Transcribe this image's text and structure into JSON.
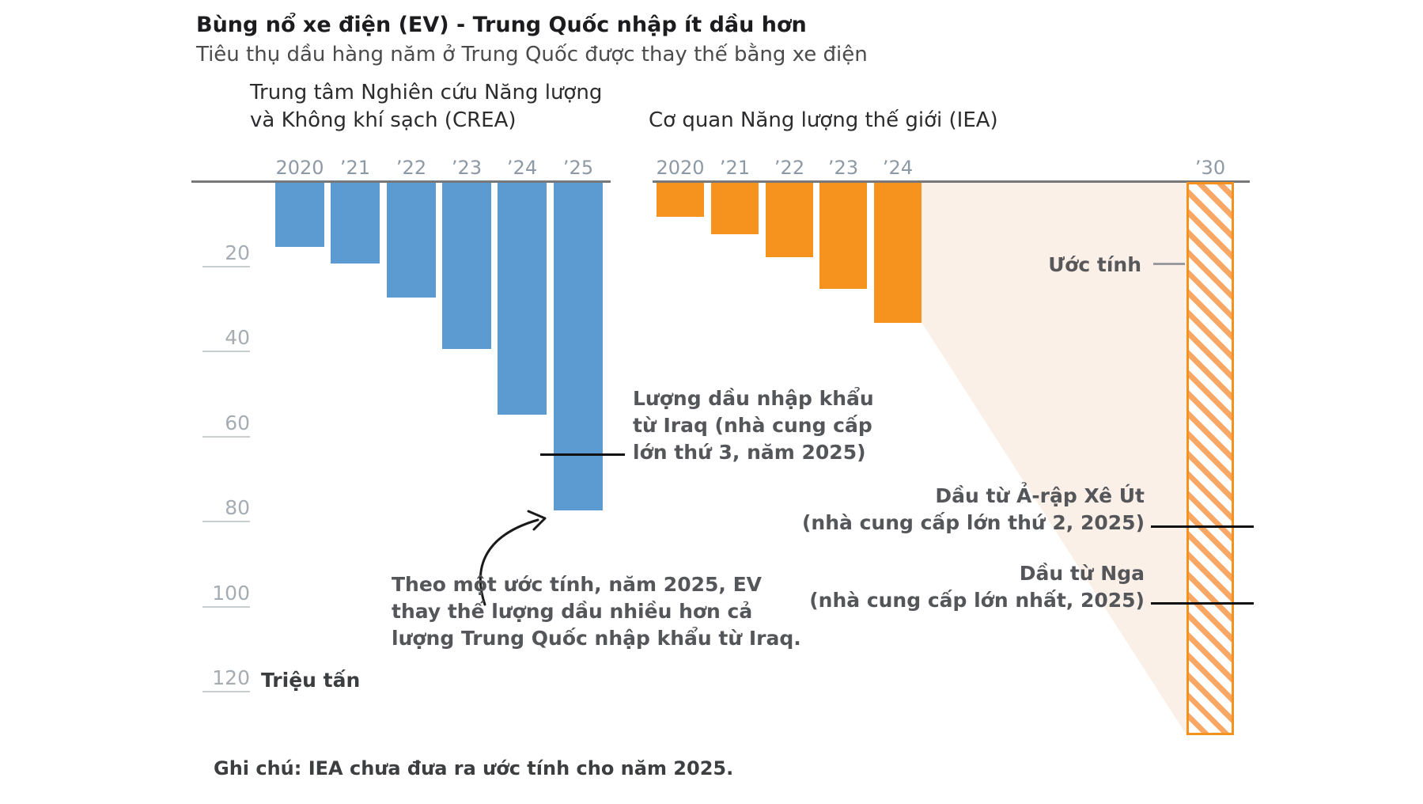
{
  "title": "Bùng nổ xe điện (EV) - Trung Quốc nhập ít dầu hơn",
  "subtitle": "Tiêu thụ dầu hàng năm ở Trung Quốc được thay thế bằng xe điện",
  "colors": {
    "crea_blue": "#5b9bd2",
    "iea_orange": "#f6921e",
    "hatch_stripe": "#f9a765",
    "estimate_fill": "#faf0e8",
    "axis_gray": "#77787a",
    "label_gray": "#8d9aa6",
    "annotation_gray": "#55565a",
    "connector_black": "#111111"
  },
  "y_axis": {
    "ticks": [
      20,
      40,
      60,
      80,
      100,
      120
    ],
    "unit_label": "Triệu tấn",
    "max_value": 130
  },
  "chart_data": [
    {
      "type": "bar",
      "name": "CREA",
      "panel_title_lines": [
        "Trung tâm Nghiên cứu Năng lượng",
        "và Không khí sạch (CREA)"
      ],
      "categories": [
        "2020",
        "’21",
        "’22",
        "’23",
        "’24",
        "’25"
      ],
      "values": [
        15,
        19,
        27,
        39,
        54.5,
        77
      ],
      "color": "#5b9bd2",
      "ylabel": "Triệu tấn",
      "orientation": "bars hang downward from top axis"
    },
    {
      "type": "bar",
      "name": "IEA",
      "panel_title_lines": [
        "Cơ quan Năng lượng thế giới (IEA)"
      ],
      "categories": [
        "2020",
        "’21",
        "’22",
        "’23",
        "’24"
      ],
      "values": [
        8,
        12,
        17.5,
        25,
        33
      ],
      "color": "#f6921e",
      "estimate_2030": {
        "label": "’30",
        "value": 130,
        "style": "hatched"
      },
      "orientation": "bars hang downward from top axis"
    }
  ],
  "annotations": {
    "iraq": {
      "value": 64,
      "lines": [
        "Lượng dầu nhập khẩu",
        "từ Iraq (nhà cung cấp",
        "lớn thứ 3, năm 2025)"
      ]
    },
    "estimate_note": {
      "lines": [
        "Theo một ước tính, năm 2025, EV",
        "thay thế lượng dầu nhiều hơn cả",
        "lượng Trung Quốc nhập khẩu từ Iraq."
      ]
    },
    "uoc_tinh": {
      "label": "Ước tính"
    },
    "saudi": {
      "value": 81,
      "lines": [
        "Dầu từ Ả-rập Xê Út",
        "(nhà cung cấp lớn thứ 2, 2025)"
      ]
    },
    "russia": {
      "value": 99,
      "lines": [
        "Dầu từ Nga",
        "(nhà cung cấp lớn nhất, 2025)"
      ]
    }
  },
  "note": "Ghi chú: IEA chưa đưa ra ước tính cho năm 2025."
}
